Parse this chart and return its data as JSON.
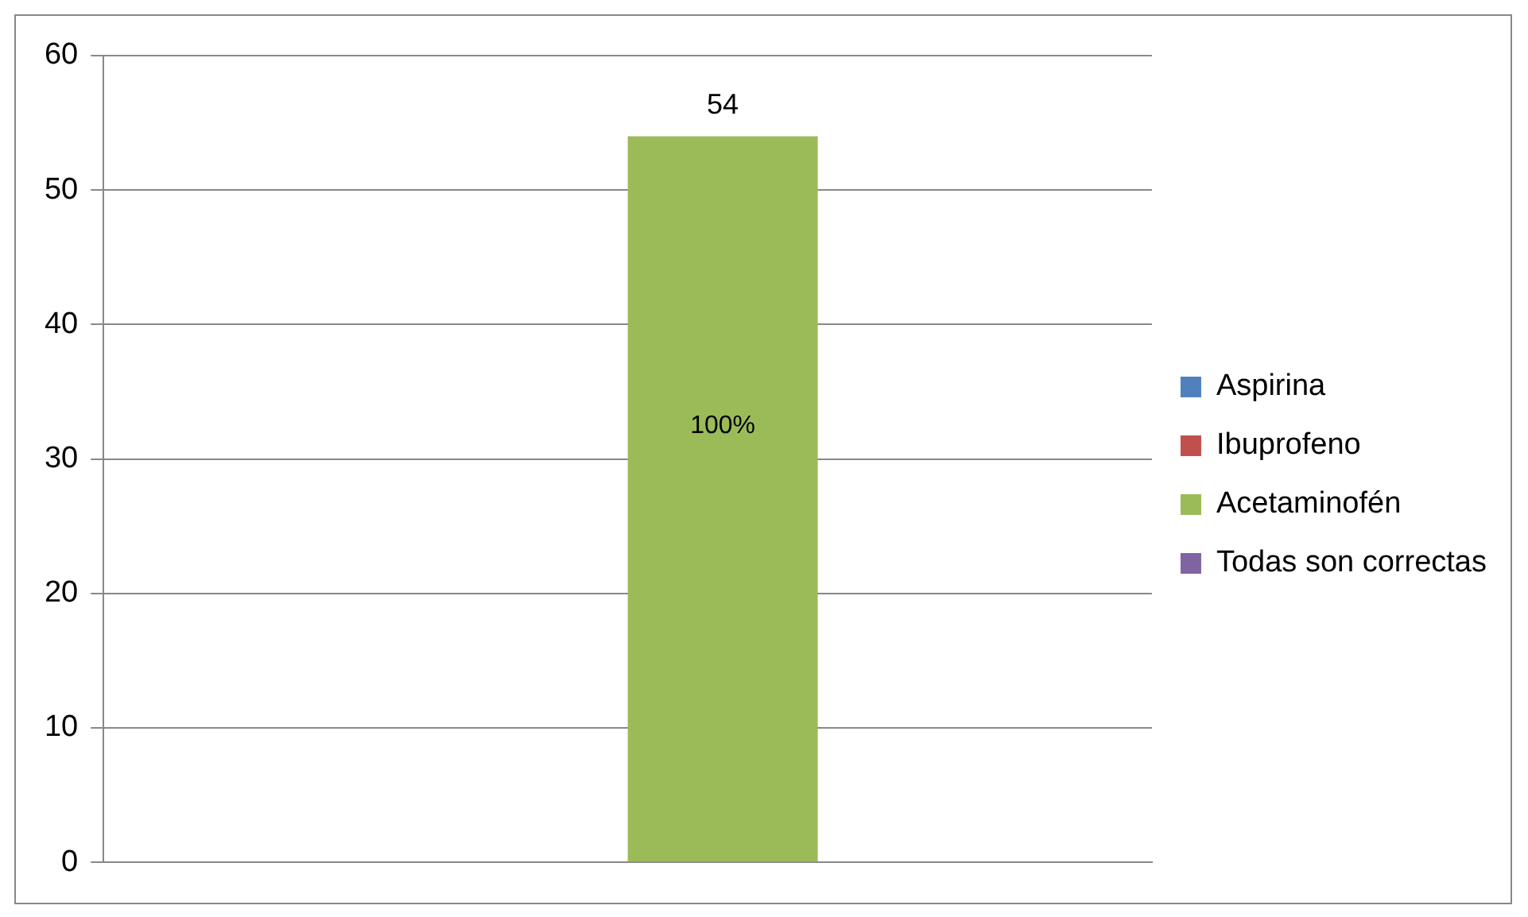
{
  "chart_data": {
    "type": "bar",
    "categories": [
      null
    ],
    "series": [
      {
        "name": "Aspirina",
        "color": "#4f81bd",
        "values": [
          null
        ]
      },
      {
        "name": "Ibuprofeno",
        "color": "#c0504d",
        "values": [
          null
        ]
      },
      {
        "name": "Acetaminofén",
        "color": "#9bbb59",
        "values": [
          54
        ]
      },
      {
        "name": "Todas son correctas",
        "color": "#8064a2",
        "values": [
          null
        ]
      }
    ],
    "ylim": [
      0,
      60
    ],
    "yticks": [
      0,
      10,
      20,
      30,
      40,
      50,
      60
    ],
    "grid": "y",
    "legend": "right",
    "data_labels": true,
    "annotations": [
      "100%"
    ]
  }
}
